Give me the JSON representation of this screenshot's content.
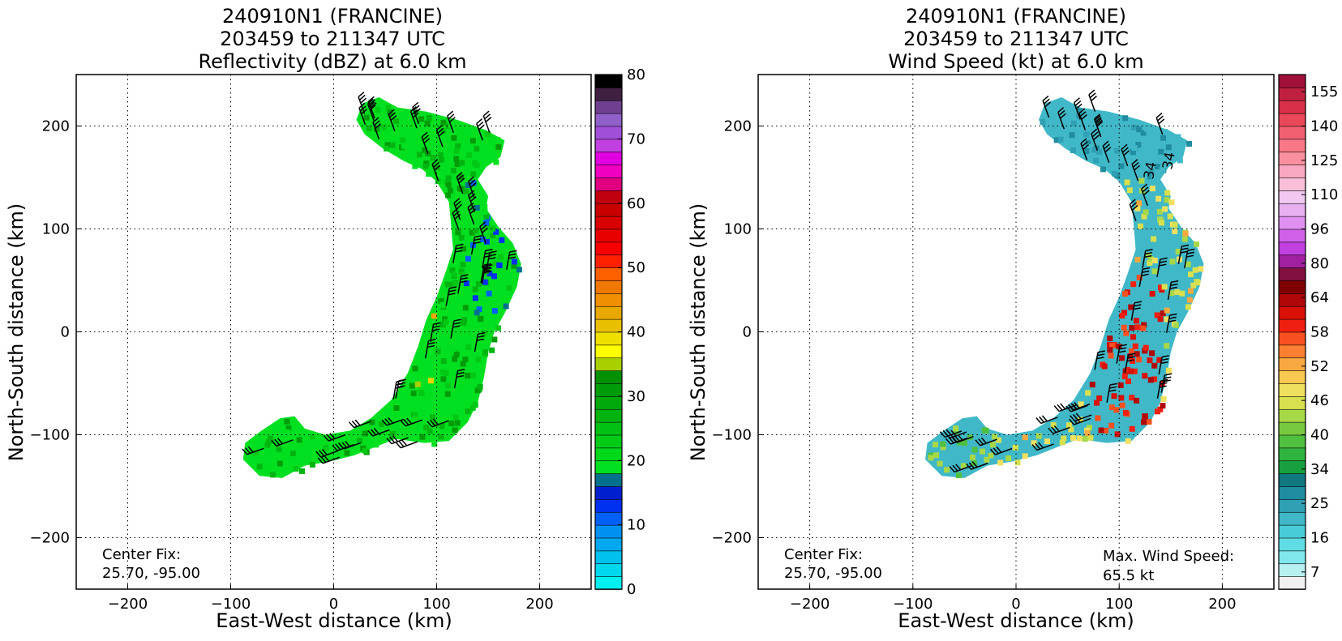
{
  "chart_data": [
    {
      "type": "heatmap",
      "title_lines": [
        "240910N1 (FRANCINE)",
        "203459 to 211347 UTC",
        "Reflectivity (dBZ) at 6.0 km"
      ],
      "xlabel": "East-West distance (km)",
      "ylabel": "North-South distance (km)",
      "xlim": [
        -250,
        250
      ],
      "ylim": [
        -250,
        250
      ],
      "x_ticks": [
        -200,
        -100,
        0,
        100,
        200
      ],
      "y_ticks": [
        -200,
        -100,
        0,
        100,
        200
      ],
      "x_tick_labels": [
        "−200",
        "−100",
        "0",
        "100",
        "200"
      ],
      "y_tick_labels": [
        "−200",
        "−100",
        "0",
        "100",
        "200"
      ],
      "grid": true,
      "annotation_lines": [
        "Center Fix:",
        "25.70, -95.00"
      ],
      "colorbar": {
        "min": 0,
        "max": 80,
        "tick_labels": [
          "0",
          "10",
          "20",
          "30",
          "40",
          "50",
          "60",
          "70",
          "80"
        ],
        "colors": [
          "#00f0f0",
          "#00d8ee",
          "#00c0ee",
          "#00a8f0",
          "#0090f0",
          "#0060f8",
          "#0030f0",
          "#0020d0",
          "#00708c",
          "#00e020",
          "#00d81c",
          "#00cc18",
          "#00c014",
          "#00b410",
          "#00a80c",
          "#009c08",
          "#009000",
          "#a8d000",
          "#ffff00",
          "#f0e000",
          "#e8c000",
          "#e8a800",
          "#f09000",
          "#f07800",
          "#ff6000",
          "#ff2000",
          "#f80000",
          "#e80000",
          "#d80000",
          "#c80000",
          "#c00010",
          "#e00080",
          "#f000c0",
          "#e000e0",
          "#c040e0",
          "#a050d8",
          "#9060c8",
          "#704090",
          "#402040",
          "#000000"
        ]
      },
      "field_colors": [
        "#00e020",
        "#00c814",
        "#00b410",
        "#009c08",
        "#0060f8",
        "#0030f0",
        "#00708c",
        "#e8d800",
        "#a8d000",
        "#e8a800"
      ],
      "barb_color": "#000000"
    },
    {
      "type": "heatmap",
      "title_lines": [
        "240910N1 (FRANCINE)",
        "203459 to 211347 UTC",
        "Wind Speed (kt) at 6.0 km"
      ],
      "xlabel": "East-West distance (km)",
      "ylabel": "North-South distance (km)",
      "xlim": [
        -250,
        250
      ],
      "ylim": [
        -250,
        250
      ],
      "x_ticks": [
        -200,
        -100,
        0,
        100,
        200
      ],
      "y_ticks": [
        -200,
        -100,
        0,
        100,
        200
      ],
      "x_tick_labels": [
        "−200",
        "−100",
        "0",
        "100",
        "200"
      ],
      "y_tick_labels": [
        "−200",
        "−100",
        "0",
        "100",
        "200"
      ],
      "grid": true,
      "annotation_lines": [
        "Center Fix:",
        "25.70, -95.00"
      ],
      "max_wind_lines": [
        "Max. Wind Speed:",
        "65.5 kt"
      ],
      "contour_labels": [
        "34",
        "34"
      ],
      "colorbar": {
        "tick_labels": [
          "7",
          "16",
          "25",
          "34",
          "40",
          "46",
          "52",
          "58",
          "64",
          "80",
          "96",
          "110",
          "125",
          "140",
          "155"
        ],
        "colors": [
          "#f0f0f0",
          "#b8f0f0",
          "#80e8ec",
          "#60dce4",
          "#48ccd8",
          "#40b8c8",
          "#30a0b4",
          "#208ca0",
          "#107880",
          "#18a040",
          "#30b440",
          "#50c040",
          "#78c840",
          "#a8d848",
          "#d8e050",
          "#f0e060",
          "#f8c850",
          "#f8a840",
          "#f88030",
          "#f85020",
          "#f02010",
          "#d81008",
          "#b00808",
          "#800000",
          "#801040",
          "#a020a0",
          "#c040e0",
          "#d060e8",
          "#e090f0",
          "#e8b0f0",
          "#f0c8f0",
          "#f8c0d8",
          "#f8a8c0",
          "#f890a0",
          "#f87888",
          "#f06070",
          "#e84858",
          "#d83048",
          "#c02040",
          "#a01038"
        ]
      },
      "field_colors": [
        "#40b8c8",
        "#30a0b4",
        "#208ca0",
        "#50c040",
        "#a8d848",
        "#d8e050",
        "#f0e060",
        "#f8a840",
        "#f85020",
        "#f02010",
        "#d81008",
        "#b00808"
      ],
      "barb_color": "#000000"
    }
  ]
}
